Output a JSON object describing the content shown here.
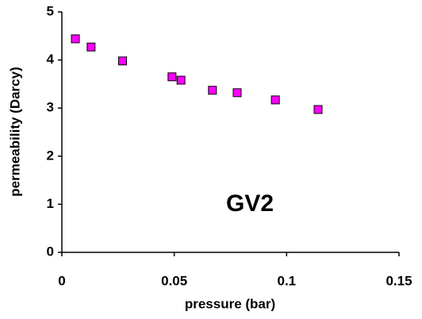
{
  "chart_data": {
    "type": "scatter",
    "xlabel": "pressure (bar)",
    "ylabel": "permeability (Darcy)",
    "annotation": "GV2",
    "x": [
      0.006,
      0.013,
      0.027,
      0.049,
      0.053,
      0.067,
      0.078,
      0.095,
      0.114
    ],
    "values": [
      4.44,
      4.27,
      3.98,
      3.65,
      3.58,
      3.37,
      3.32,
      3.17,
      2.97
    ],
    "color": "#ff00ff",
    "xlim": [
      0,
      0.15
    ],
    "xticks": [
      0,
      0.05,
      0.1,
      0.15
    ],
    "ylim": [
      0,
      5
    ],
    "yticks": [
      0,
      1,
      2,
      3,
      4,
      5
    ],
    "grid": false
  }
}
